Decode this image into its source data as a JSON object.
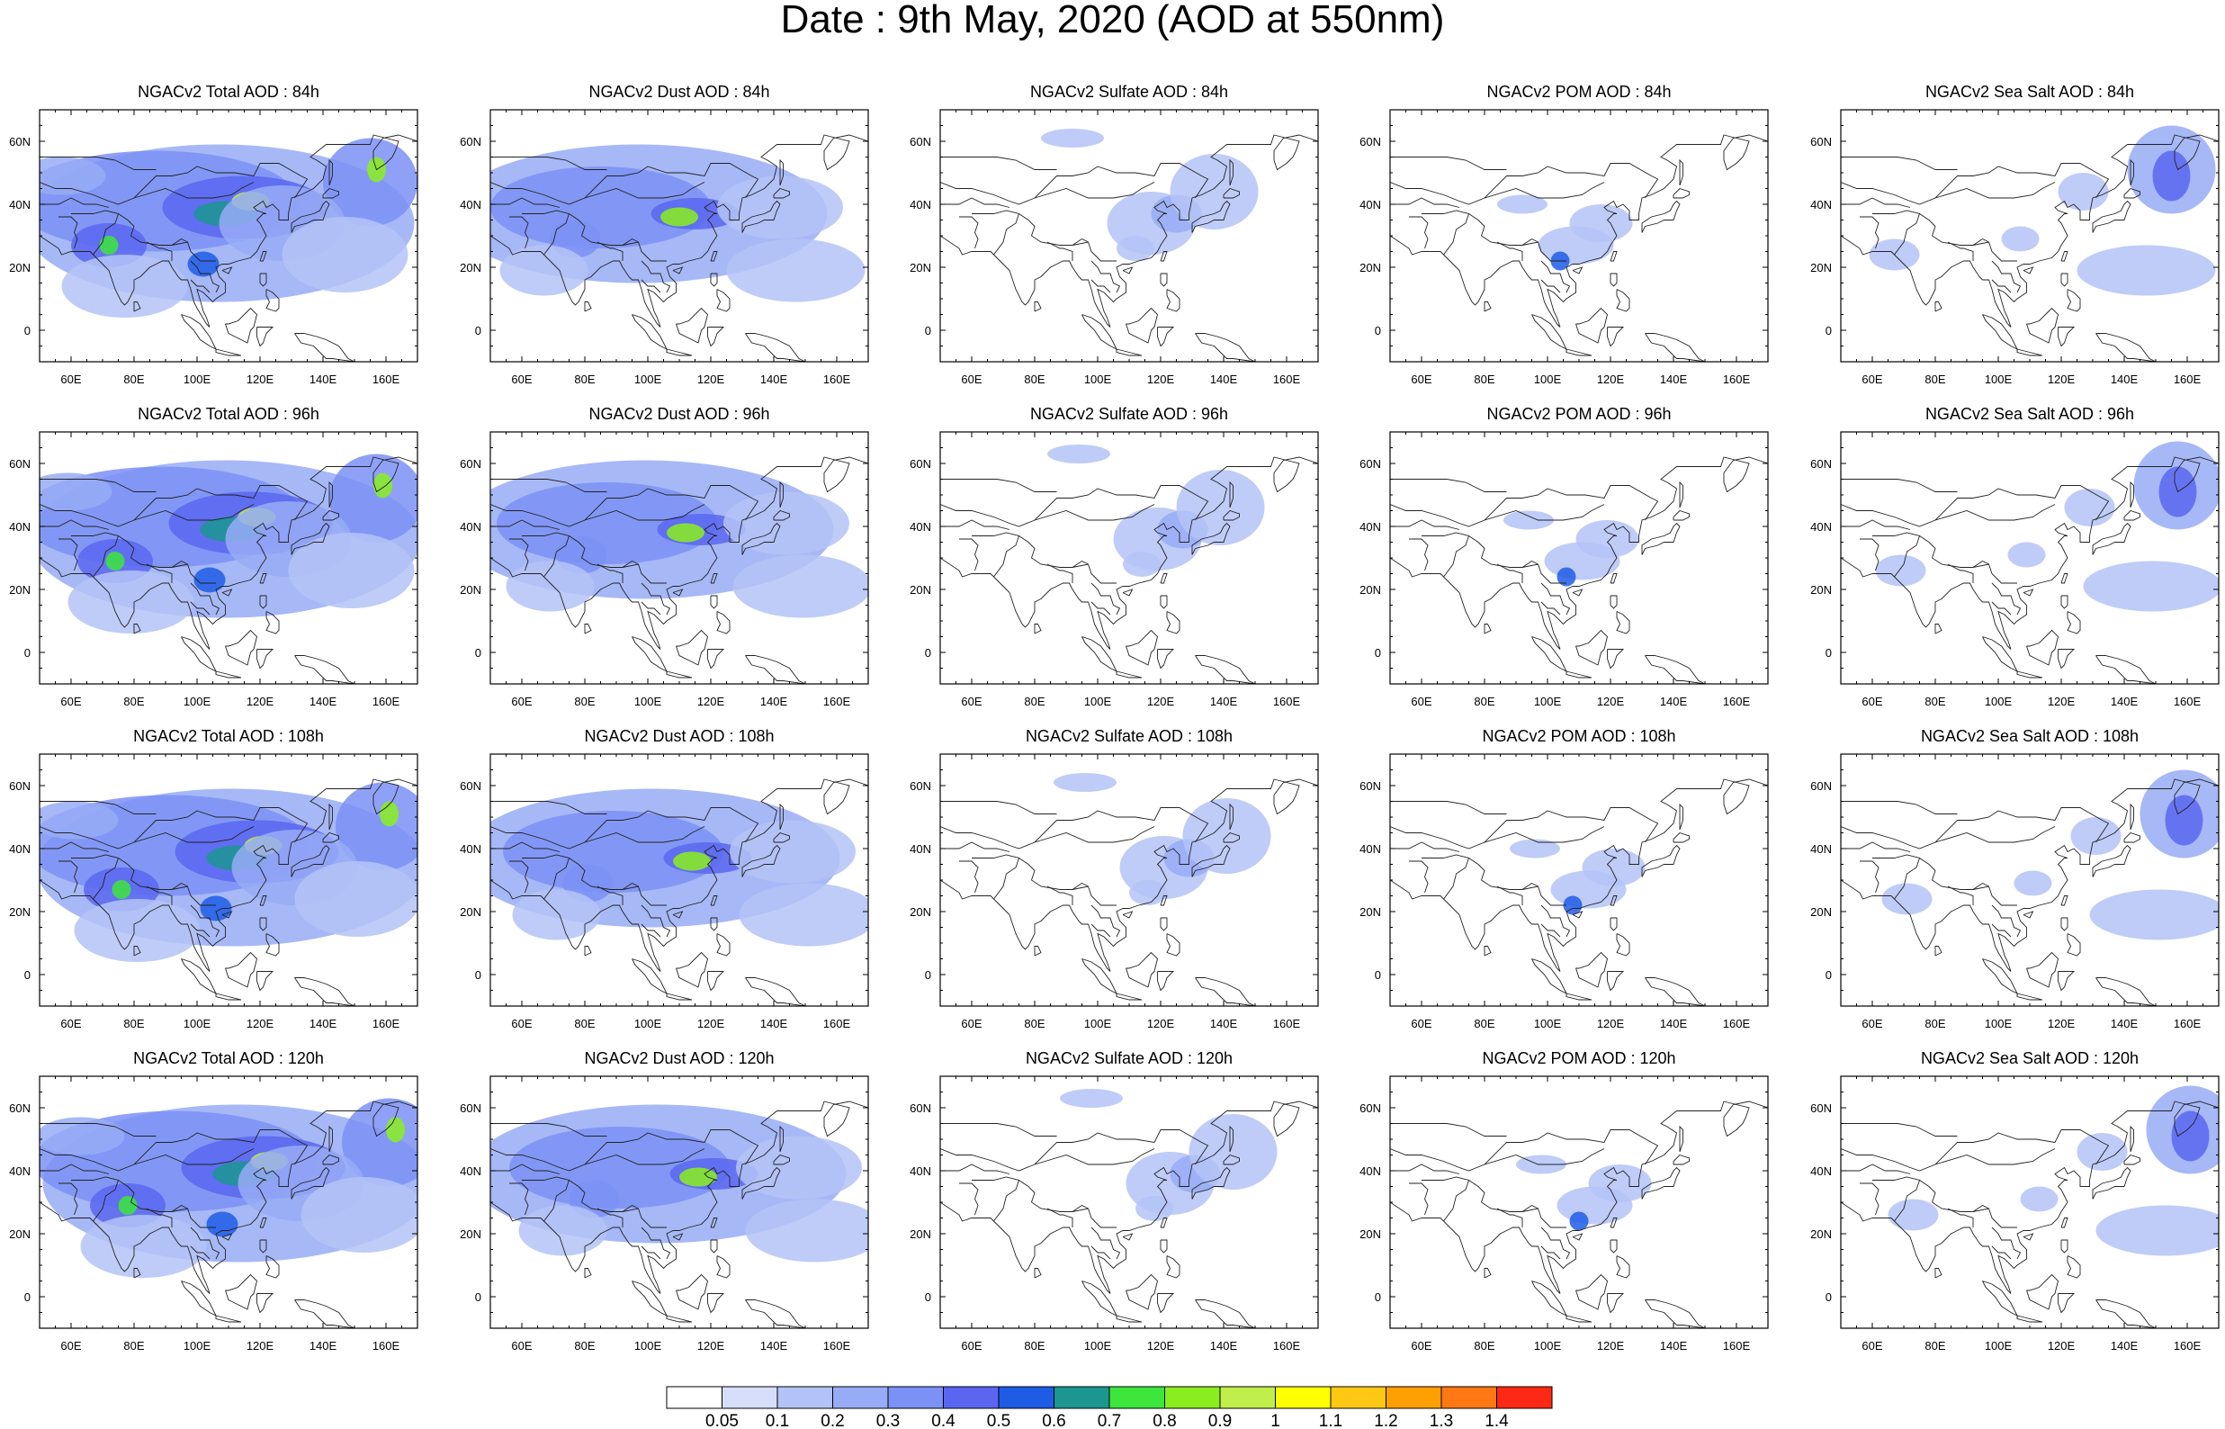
{
  "title": "Date : 9th May, 2020 (AOD at 550nm)",
  "rows": [
    {
      "panels": [
        {
          "title": "NGACv2 Total AOD : 84h",
          "kind": "total"
        },
        {
          "title": "NGACv2 Dust AOD : 84h",
          "kind": "dust"
        },
        {
          "title": "NGACv2 Sulfate AOD : 84h",
          "kind": "sulfate"
        },
        {
          "title": "NGACv2 POM AOD : 84h",
          "kind": "pom"
        },
        {
          "title": "NGACv2 Sea Salt AOD : 84h",
          "kind": "seasalt"
        }
      ]
    },
    {
      "panels": [
        {
          "title": "NGACv2 Total AOD : 96h",
          "kind": "total"
        },
        {
          "title": "NGACv2 Dust AOD : 96h",
          "kind": "dust"
        },
        {
          "title": "NGACv2 Sulfate AOD : 96h",
          "kind": "sulfate"
        },
        {
          "title": "NGACv2 POM AOD : 96h",
          "kind": "pom"
        },
        {
          "title": "NGACv2 Sea Salt AOD : 96h",
          "kind": "seasalt"
        }
      ]
    },
    {
      "panels": [
        {
          "title": "NGACv2 Total AOD : 108h",
          "kind": "total"
        },
        {
          "title": "NGACv2 Dust AOD : 108h",
          "kind": "dust"
        },
        {
          "title": "NGACv2 Sulfate AOD : 108h",
          "kind": "sulfate"
        },
        {
          "title": "NGACv2 POM AOD : 108h",
          "kind": "pom"
        },
        {
          "title": "NGACv2 Sea Salt AOD : 108h",
          "kind": "seasalt"
        }
      ]
    },
    {
      "panels": [
        {
          "title": "NGACv2 Total AOD : 120h",
          "kind": "total"
        },
        {
          "title": "NGACv2 Dust AOD : 120h",
          "kind": "dust"
        },
        {
          "title": "NGACv2 Sulfate AOD : 120h",
          "kind": "sulfate"
        },
        {
          "title": "NGACv2 POM AOD : 120h",
          "kind": "pom"
        },
        {
          "title": "NGACv2 Sea Salt  AOD : 120h",
          "kind": "seasalt"
        }
      ]
    }
  ],
  "map": {
    "lon_range": [
      50,
      170
    ],
    "lat_range": [
      -10,
      70
    ],
    "lon_ticks": [
      "60E",
      "80E",
      "100E",
      "120E",
      "140E",
      "160E"
    ],
    "lat_ticks": [
      "60N",
      "40N",
      "20N",
      "0"
    ]
  },
  "colorbar": {
    "labels": [
      "0.05",
      "0.1",
      "0.2",
      "0.3",
      "0.4",
      "0.5",
      "0.6",
      "0.7",
      "0.8",
      "0.9",
      "1",
      "1.1",
      "1.2",
      "1.3",
      "1.4"
    ],
    "colors": [
      "#ffffff",
      "#d6defa",
      "#b4c3f7",
      "#98abf6",
      "#7b91f5",
      "#5a66f0",
      "#1e5ce6",
      "#1b9690",
      "#3ce63c",
      "#8aee1e",
      "#c0ee4a",
      "#ffff00",
      "#ffc814",
      "#ffa000",
      "#ff7814",
      "#ff2814"
    ]
  }
}
